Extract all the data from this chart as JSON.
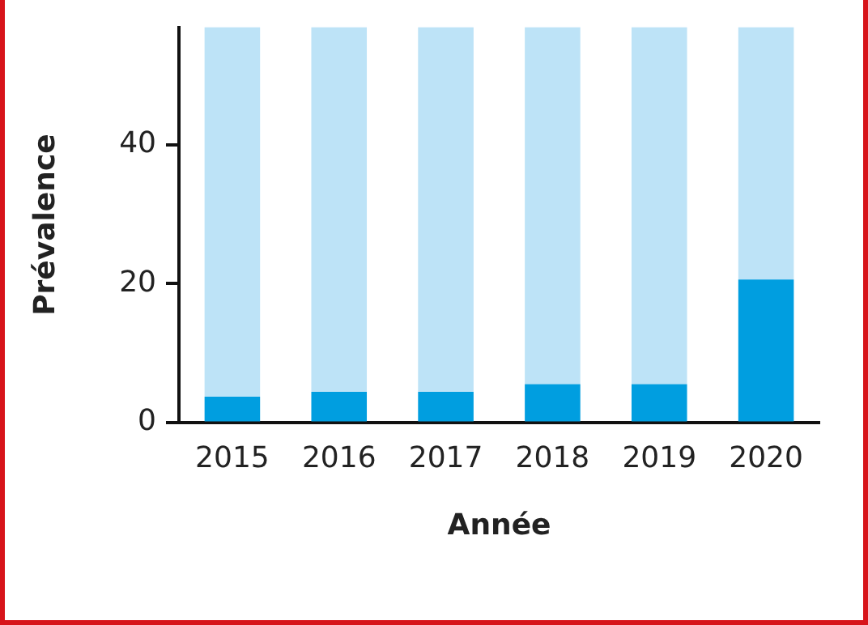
{
  "chart_data": {
    "type": "bar",
    "stacked": true,
    "xlabel": "Année",
    "ylabel": "Prévalence",
    "categories": [
      "2015",
      "2016",
      "2017",
      "2018",
      "2019",
      "2020"
    ],
    "series": [
      {
        "color": "#009ee0",
        "values": [
          3.7,
          4.4,
          4.4,
          5.5,
          5.5,
          20.6
        ]
      },
      {
        "color": "#bde3f7",
        "values": [
          53.3,
          52.6,
          52.6,
          51.5,
          51.5,
          36.4
        ]
      }
    ],
    "ylim": [
      0,
      57
    ],
    "yticks": [
      0,
      20,
      40
    ],
    "grid": false,
    "legend": false
  }
}
